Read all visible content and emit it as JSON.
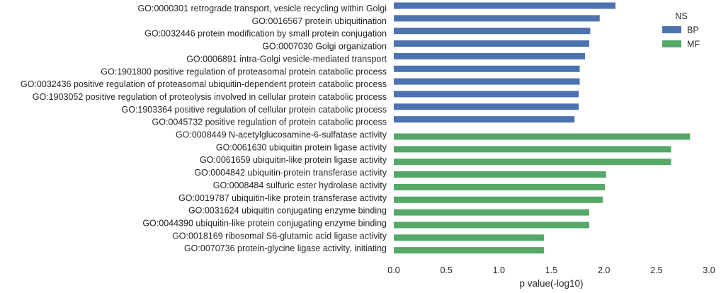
{
  "chart_data": {
    "type": "bar",
    "orientation": "horizontal",
    "categories": [
      "GO:0000301 retrograde transport, vesicle recycling within Golgi",
      "GO:0016567 protein ubiquitination",
      "GO:0032446 protein modification by small protein conjugation",
      "GO:0007030 Golgi organization",
      "GO:0006891 intra-Golgi vesicle-mediated transport",
      "GO:1901800 positive regulation of proteasomal protein catabolic process",
      "GO:0032436 positive regulation of proteasomal ubiquitin-dependent protein catabolic process",
      "GO:1903052 positive regulation of proteolysis involved in cellular protein catabolic process",
      "GO:1903364 positive regulation of cellular protein catabolic process",
      "GO:0045732 positive regulation of protein catabolic process",
      "GO:0008449 N-acetylglucosamine-6-sulfatase activity",
      "GO:0061630 ubiquitin protein ligase activity",
      "GO:0061659 ubiquitin-like protein ligase activity",
      "GO:0004842 ubiquitin-protein transferase activity",
      "GO:0008484 sulfuric ester hydrolase activity",
      "GO:0019787 ubiquitin-like protein transferase activity",
      "GO:0031624 ubiquitin conjugating enzyme binding",
      "GO:0044390 ubiquitin-like protein conjugating enzyme binding",
      "GO:0018169 ribosomal S6-glutamic acid ligase activity",
      "GO:0070736 protein-glycine ligase activity, initiating"
    ],
    "series": [
      {
        "name": "BP",
        "color": "#4c72b0",
        "values": [
          2.11,
          1.96,
          1.87,
          1.86,
          1.82,
          1.77,
          1.77,
          1.76,
          1.76,
          1.72,
          null,
          null,
          null,
          null,
          null,
          null,
          null,
          null,
          null,
          null
        ]
      },
      {
        "name": "MF",
        "color": "#55a868",
        "values": [
          null,
          null,
          null,
          null,
          null,
          null,
          null,
          null,
          null,
          null,
          2.82,
          2.64,
          2.64,
          2.02,
          2.01,
          1.99,
          1.86,
          1.86,
          1.43,
          1.43
        ]
      }
    ],
    "xlabel": "p value(-log10)",
    "xlim": [
      0,
      3.0
    ],
    "xticks": [
      "0.0",
      "0.5",
      "1.0",
      "1.5",
      "2.0",
      "2.5",
      "3.0"
    ],
    "grid": false,
    "legend": {
      "title": "NS",
      "placement": "top-right"
    }
  }
}
